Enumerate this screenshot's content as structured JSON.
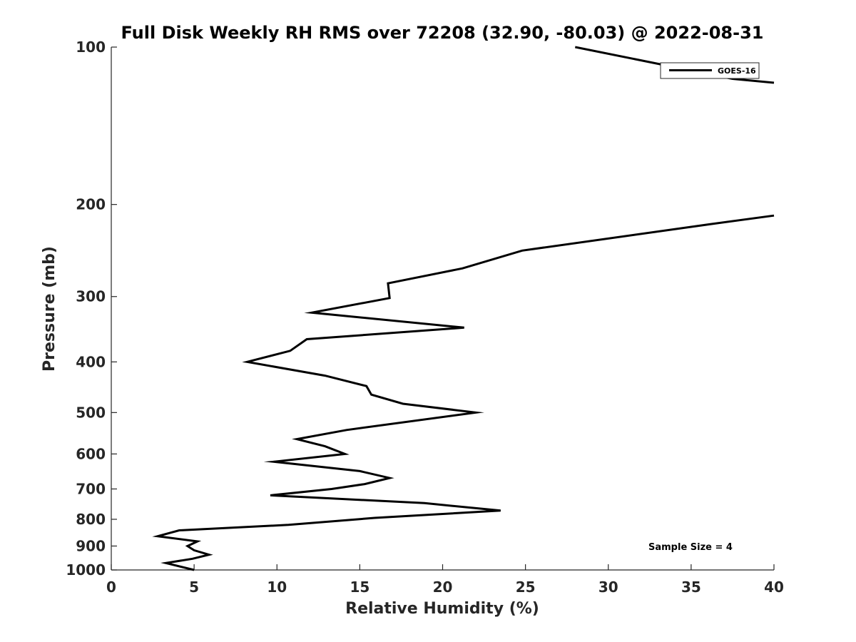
{
  "chart_data": {
    "type": "line",
    "title": "Full Disk Weekly RH RMS over 72208 (32.90, -80.03) @ 2022-08-31",
    "xlabel": "Relative Humidity (%)",
    "ylabel": "Pressure (mb)",
    "xlim": [
      0,
      40
    ],
    "ylim": [
      100,
      1000
    ],
    "y_scale": "log",
    "y_reversed": true,
    "xticks": [
      0,
      5,
      10,
      15,
      20,
      25,
      30,
      35,
      40
    ],
    "xtick_labels": [
      "0",
      "5",
      "10",
      "15",
      "20",
      "25",
      "30",
      "35",
      "40"
    ],
    "yticks": [
      100,
      200,
      300,
      400,
      500,
      600,
      700,
      800,
      900,
      1000
    ],
    "ytick_labels": [
      "100",
      "200",
      "300",
      "400",
      "500",
      "600",
      "700",
      "800",
      "900",
      "1000"
    ],
    "grid": false,
    "legend_position": "top-right",
    "annotation": "Sample Size = 4",
    "series": [
      {
        "name": "GOES-16",
        "color": "#000000",
        "segments": [
          [
            {
              "x": 28.0,
              "y": 100
            },
            {
              "x": 37.5,
              "y": 115
            },
            {
              "x": 40.0,
              "y": 117
            }
          ],
          [
            {
              "x": 40.0,
              "y": 210
            },
            {
              "x": 36.2,
              "y": 218
            },
            {
              "x": 24.8,
              "y": 245
            },
            {
              "x": 21.2,
              "y": 265
            },
            {
              "x": 16.7,
              "y": 283
            },
            {
              "x": 16.8,
              "y": 302
            },
            {
              "x": 12.1,
              "y": 322
            },
            {
              "x": 21.3,
              "y": 344
            },
            {
              "x": 11.8,
              "y": 362
            },
            {
              "x": 10.8,
              "y": 381
            },
            {
              "x": 8.2,
              "y": 400
            },
            {
              "x": 12.9,
              "y": 425
            },
            {
              "x": 15.4,
              "y": 445
            },
            {
              "x": 15.7,
              "y": 462
            },
            {
              "x": 17.6,
              "y": 481
            },
            {
              "x": 22.0,
              "y": 500
            },
            {
              "x": 14.2,
              "y": 540
            },
            {
              "x": 11.2,
              "y": 562
            },
            {
              "x": 12.9,
              "y": 580
            },
            {
              "x": 14.1,
              "y": 600
            },
            {
              "x": 9.8,
              "y": 621
            },
            {
              "x": 15.0,
              "y": 647
            },
            {
              "x": 16.8,
              "y": 667
            },
            {
              "x": 15.3,
              "y": 685
            },
            {
              "x": 13.3,
              "y": 700
            },
            {
              "x": 9.6,
              "y": 720
            },
            {
              "x": 18.9,
              "y": 745
            },
            {
              "x": 23.5,
              "y": 770
            },
            {
              "x": 15.9,
              "y": 795
            },
            {
              "x": 10.7,
              "y": 820
            },
            {
              "x": 4.1,
              "y": 840
            },
            {
              "x": 2.8,
              "y": 862
            },
            {
              "x": 5.2,
              "y": 882
            },
            {
              "x": 4.6,
              "y": 900
            },
            {
              "x": 5.0,
              "y": 917
            },
            {
              "x": 5.9,
              "y": 935
            },
            {
              "x": 4.9,
              "y": 952
            },
            {
              "x": 3.3,
              "y": 970
            },
            {
              "x": 5.0,
              "y": 1000
            }
          ]
        ]
      }
    ]
  }
}
